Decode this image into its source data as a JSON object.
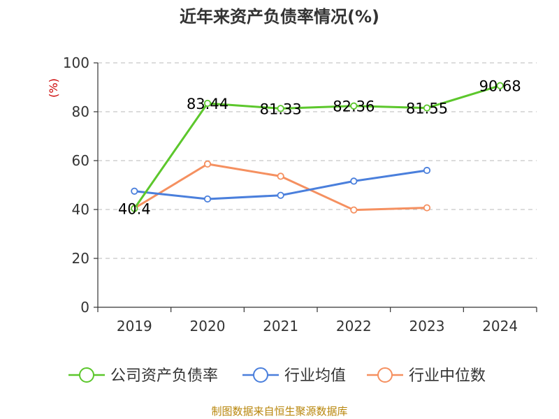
{
  "chart_data": {
    "type": "line",
    "title": "近年来资产负债率情况(%)",
    "ylabel": "(%)",
    "xlabel": "",
    "categories": [
      "2019",
      "2020",
      "2021",
      "2022",
      "2023",
      "2024"
    ],
    "ylim": [
      0,
      100
    ],
    "yticks": [
      0,
      20,
      40,
      60,
      80,
      100
    ],
    "grid": true,
    "legend_position": "bottom",
    "series": [
      {
        "name": "公司资产负债率",
        "color": "#5cc72c",
        "values": [
          40.4,
          83.44,
          81.33,
          82.36,
          81.55,
          90.68
        ],
        "data_labels": [
          "40.4",
          "83.44",
          "81.33",
          "82.36",
          "81.55",
          "90.68"
        ]
      },
      {
        "name": "行业均值",
        "color": "#4a7fdc",
        "values": [
          47.5,
          44.3,
          45.8,
          51.6,
          56.0,
          null
        ]
      },
      {
        "name": "行业中位数",
        "color": "#f59060",
        "values": [
          40.5,
          58.6,
          53.6,
          39.8,
          40.7,
          null
        ]
      }
    ]
  },
  "source_note": "制图数据来自恒生聚源数据库"
}
